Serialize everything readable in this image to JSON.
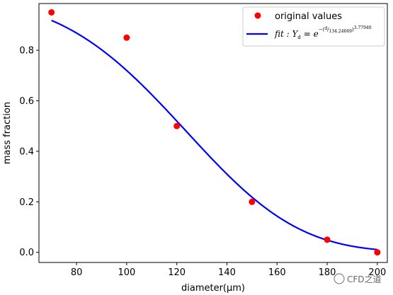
{
  "chart_data": {
    "type": "scatter",
    "xlabel": "diameter(μm)",
    "ylabel": "mass fraction",
    "xlim": [
      65,
      204
    ],
    "ylim": [
      -0.04,
      0.985
    ],
    "xticks": [
      80,
      100,
      120,
      140,
      160,
      180,
      200
    ],
    "yticks": [
      0.0,
      0.2,
      0.4,
      0.6,
      0.8
    ],
    "xtick_labels": [
      "80",
      "100",
      "120",
      "140",
      "160",
      "180",
      "200"
    ],
    "ytick_labels": [
      "0.0",
      "0.2",
      "0.4",
      "0.6",
      "0.8"
    ],
    "grid": false,
    "legend_position": "top-right",
    "series": [
      {
        "name": "original values",
        "kind": "points",
        "color": "#ff0000",
        "x": [
          70,
          100,
          120,
          150,
          180,
          200
        ],
        "y": [
          0.95,
          0.85,
          0.5,
          0.2,
          0.05,
          0.0
        ]
      },
      {
        "name": "fit : Y_d = e^-(d/134.24669)^3.77940",
        "kind": "line",
        "color": "#0000ff",
        "function": "rosin-rammler",
        "d_mean": 134.24669,
        "n": 3.7794,
        "x_range": [
          70,
          200
        ]
      }
    ],
    "legend": {
      "points_label": "original values",
      "fit_prefix": "fit : Y",
      "fit_sub": "d",
      "fit_eq": " = e",
      "fit_num": "d",
      "fit_den": "134.24669",
      "fit_exp": "3.77940"
    }
  },
  "watermark": {
    "text": "CFD之道"
  }
}
